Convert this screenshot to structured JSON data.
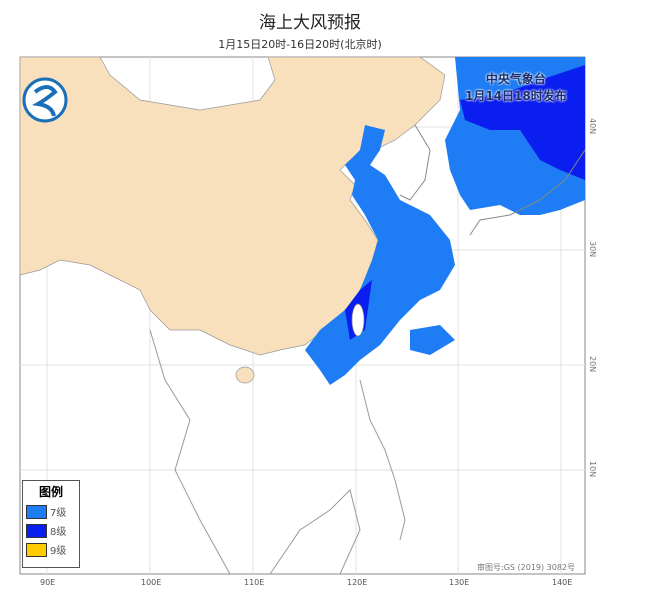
{
  "header": {
    "title": "海上大风预报",
    "subtitle": "1月15日20时-16日20时(北京时)"
  },
  "agency": {
    "name": "中央气象台",
    "issued": "1月14日18时发布"
  },
  "legend": {
    "title": "图例",
    "items": [
      {
        "label": "7级",
        "color": "#1e7cf5"
      },
      {
        "label": "8级",
        "color": "#0a1ef0"
      },
      {
        "label": "9级",
        "color": "#ffcc00"
      }
    ]
  },
  "approval": "审图号:GS (2019) 3082号",
  "axes": {
    "lon": [
      "90E",
      "100E",
      "110E",
      "120E",
      "130E",
      "140E"
    ],
    "lat": [
      "40N",
      "30N",
      "20N",
      "10N"
    ]
  },
  "colors": {
    "land_china": "#f7e0bb",
    "sea": "#ffffff",
    "border": "#888888"
  }
}
